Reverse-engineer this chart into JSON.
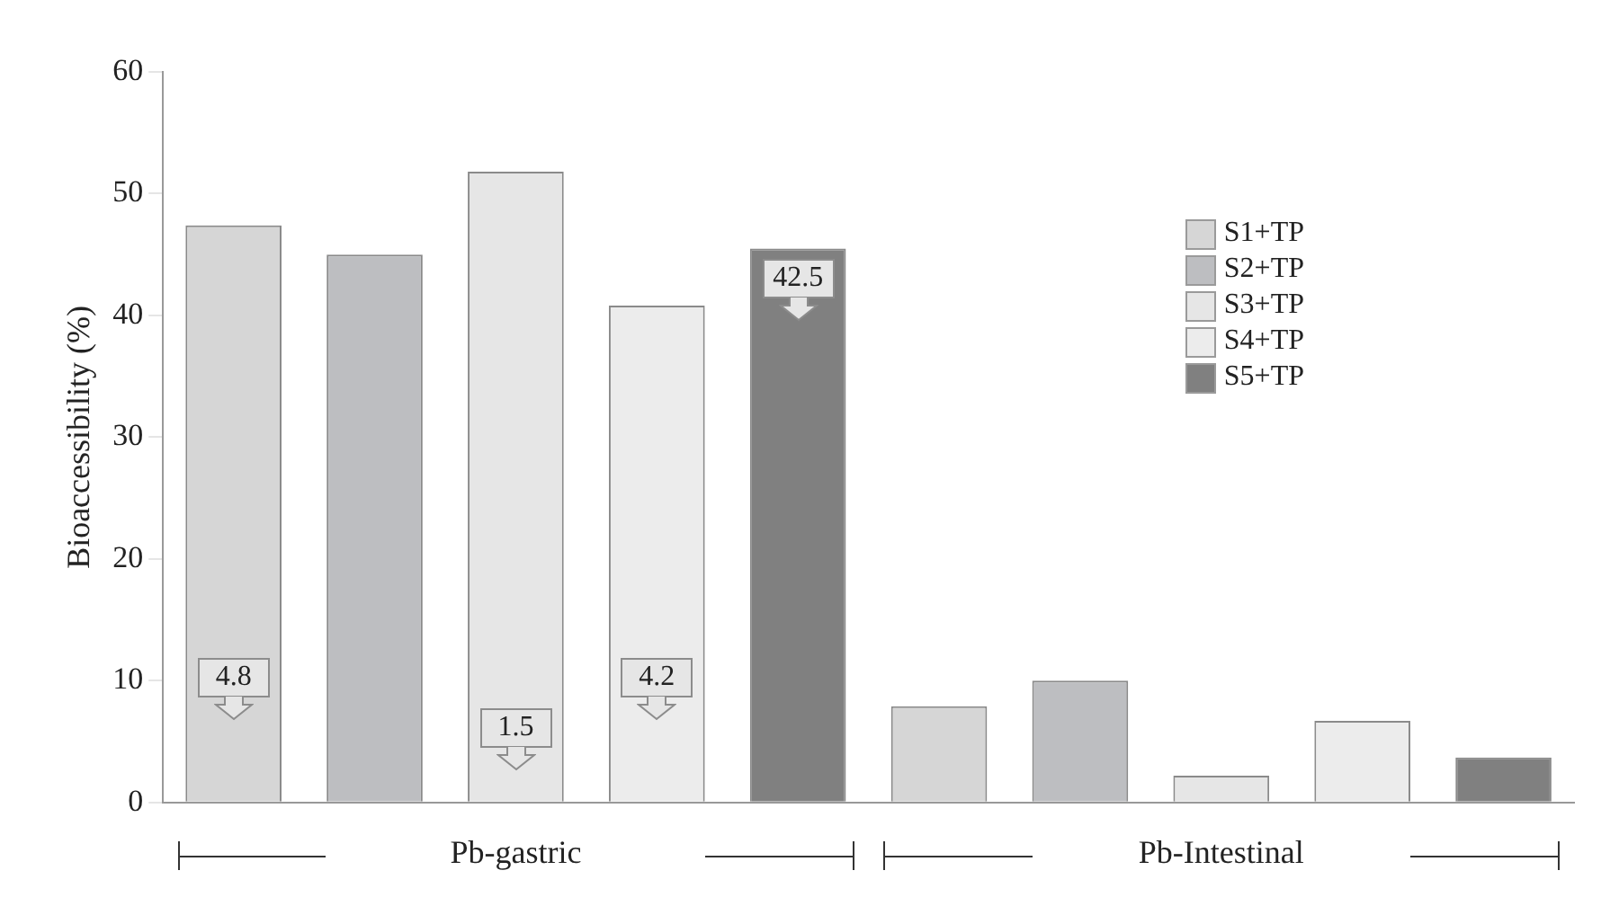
{
  "chart_data": {
    "type": "bar",
    "ylabel": "Bioaccessibility (%)",
    "categories": [
      "Pb-gastric",
      "Pb-Intestinal"
    ],
    "series": [
      {
        "name": "S1+TP",
        "color": "#d6d6d6",
        "values": [
          47.4,
          7.9
        ]
      },
      {
        "name": "S2+TP",
        "color": "#bdbec1",
        "values": [
          45.0,
          10.0
        ]
      },
      {
        "name": "S3+TP",
        "color": "#e6e6e6",
        "values": [
          51.8,
          2.2
        ]
      },
      {
        "name": "S4+TP",
        "color": "#ececec",
        "values": [
          40.8,
          6.7
        ]
      },
      {
        "name": "S5+TP",
        "color": "#808080",
        "values": [
          45.5,
          3.7
        ]
      }
    ],
    "annotations": [
      "4.8",
      "1.5",
      "4.2",
      "42.5"
    ],
    "ylim": [
      0,
      60
    ],
    "yticks": [
      0,
      10,
      20,
      30,
      40,
      50,
      60
    ],
    "grid": false,
    "legend": "top right"
  }
}
